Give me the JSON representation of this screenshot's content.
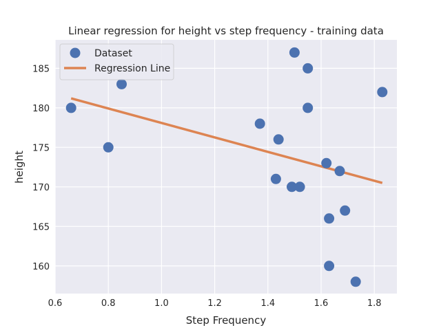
{
  "chart_data": {
    "type": "scatter",
    "title": "Linear regression for height vs step frequency - training data",
    "xlabel": "Step Frequency",
    "ylabel": "height",
    "xlim": [
      0.6,
      1.885
    ],
    "ylim": [
      156.5,
      188.6
    ],
    "xticks": [
      "0.6",
      "0.8",
      "1.0",
      "1.2",
      "1.4",
      "1.6",
      "1.8"
    ],
    "yticks": [
      "160",
      "165",
      "170",
      "175",
      "180",
      "185"
    ],
    "grid": true,
    "legend_position": "top-left",
    "series": [
      {
        "name": "Dataset",
        "kind": "scatter",
        "color": "#4c72b0",
        "points": [
          {
            "x": 0.66,
            "y": 180
          },
          {
            "x": 0.8,
            "y": 175
          },
          {
            "x": 0.85,
            "y": 183
          },
          {
            "x": 1.37,
            "y": 178
          },
          {
            "x": 1.43,
            "y": 171
          },
          {
            "x": 1.44,
            "y": 176
          },
          {
            "x": 1.49,
            "y": 170
          },
          {
            "x": 1.5,
            "y": 187
          },
          {
            "x": 1.52,
            "y": 170
          },
          {
            "x": 1.55,
            "y": 185
          },
          {
            "x": 1.55,
            "y": 180
          },
          {
            "x": 1.62,
            "y": 173
          },
          {
            "x": 1.63,
            "y": 166
          },
          {
            "x": 1.63,
            "y": 160
          },
          {
            "x": 1.67,
            "y": 172
          },
          {
            "x": 1.69,
            "y": 167
          },
          {
            "x": 1.73,
            "y": 158
          },
          {
            "x": 1.83,
            "y": 182
          }
        ]
      },
      {
        "name": "Regression Line",
        "kind": "line",
        "color": "#dd8452",
        "points": [
          {
            "x": 0.66,
            "y": 181.2
          },
          {
            "x": 1.83,
            "y": 170.5
          }
        ]
      }
    ]
  }
}
